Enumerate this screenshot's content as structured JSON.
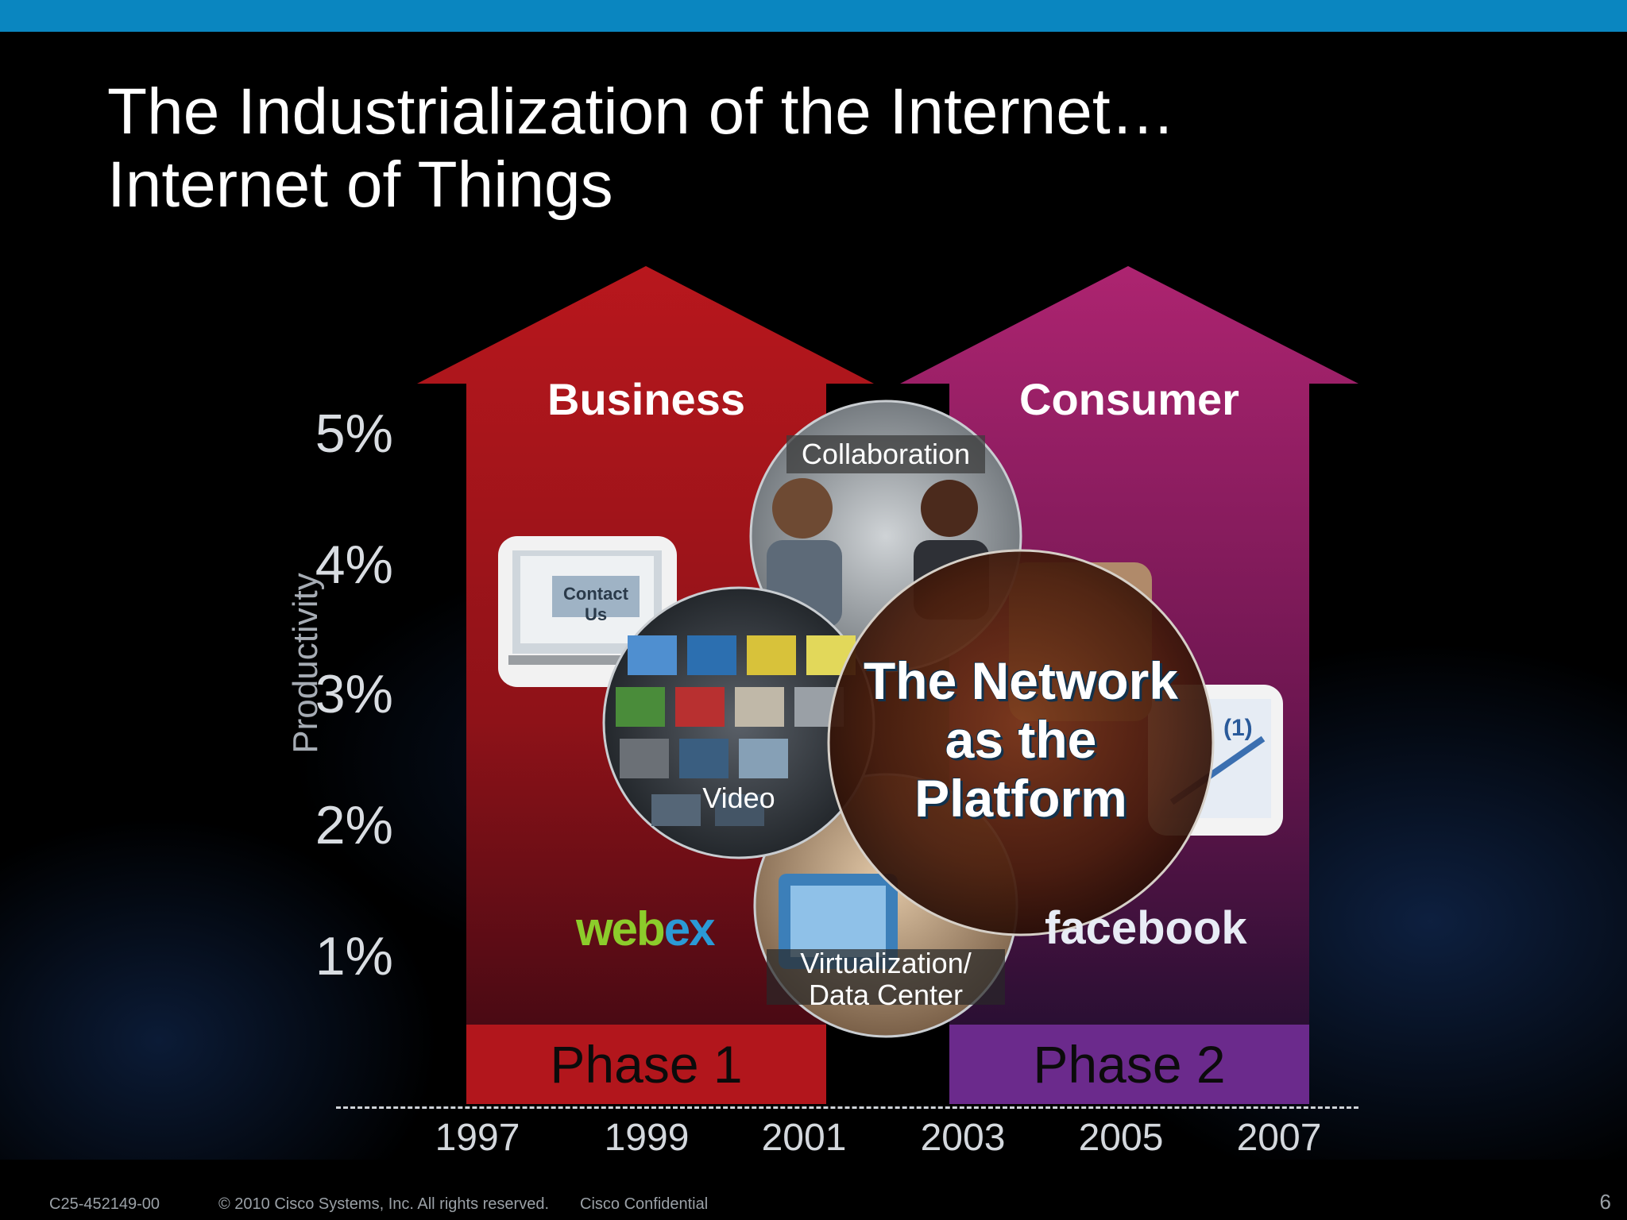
{
  "slide": {
    "title_line1": "The Industrialization of the Internet…",
    "title_line2": "Internet of Things",
    "page_number": "6"
  },
  "y_axis": {
    "label": "Productivity",
    "ticks": [
      "5%",
      "4%",
      "3%",
      "2%",
      "1%"
    ]
  },
  "x_axis": {
    "ticks": [
      "1997",
      "1999",
      "2001",
      "2003",
      "2005",
      "2007"
    ]
  },
  "arrows": {
    "business": {
      "label": "Business",
      "phase": "Phase 1",
      "color": "#b5161c",
      "phase_color": "#b2161c"
    },
    "consumer": {
      "label": "Consumer",
      "phase": "Phase 2",
      "color": "#a8226c",
      "phase_color": "#6b2a8c"
    }
  },
  "circles": {
    "collaboration": "Collaboration",
    "video": "Video",
    "virtualization_line1": "Virtualization/",
    "virtualization_line2": "Data Center",
    "center_line1": "The Network",
    "center_line2": "as the",
    "center_line3": "Platform"
  },
  "thumbnails": {
    "contact_us": "Contact Us",
    "tag_text": "(1)"
  },
  "logos": {
    "webex_part1": "web",
    "webex_part2": "ex",
    "facebook": "facebook"
  },
  "footer": {
    "code": "C25-452149-00",
    "copyright": "© 2010 Cisco Systems, Inc. All rights reserved.",
    "confidential": "Cisco Confidential"
  },
  "colors": {
    "top_bar": "#0a86c0",
    "background": "#000000"
  }
}
